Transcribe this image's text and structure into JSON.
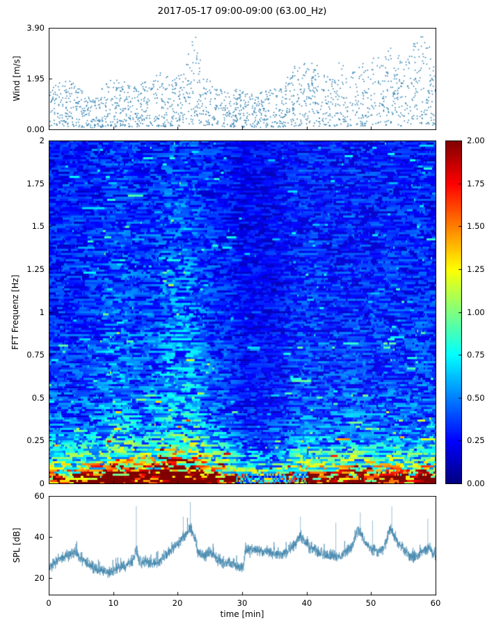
{
  "figure": {
    "title": "2017-05-17 09:00-09:00 (63.00_Hz)",
    "xlabel": "time [min]",
    "x_ticks": [
      0,
      10,
      20,
      30,
      40,
      50,
      60
    ],
    "x_range": [
      0,
      60
    ],
    "background": "#ffffff",
    "seed": 42
  },
  "chart_data": [
    {
      "id": "wind",
      "type": "scatter",
      "ylabel": "Wind [m/s]",
      "ylim": [
        0,
        3.9
      ],
      "yticks": [
        {
          "v": 0,
          "label": "0.00"
        },
        {
          "v": 1.95,
          "label": "1.95"
        },
        {
          "v": 3.9,
          "label": "3.90"
        }
      ],
      "marker_color": "#2d7fb0",
      "n_points": 1750,
      "max_envelope": [
        [
          0,
          1.6
        ],
        [
          3,
          2.1
        ],
        [
          5,
          1.5
        ],
        [
          7,
          1.1
        ],
        [
          9,
          1.9
        ],
        [
          11,
          2.0
        ],
        [
          13,
          1.6
        ],
        [
          15,
          1.9
        ],
        [
          17,
          2.2
        ],
        [
          19,
          2.0
        ],
        [
          21,
          2.3
        ],
        [
          22.5,
          3.85
        ],
        [
          24,
          2.0
        ],
        [
          26,
          1.7
        ],
        [
          28,
          1.5
        ],
        [
          30,
          1.6
        ],
        [
          32,
          1.4
        ],
        [
          34,
          1.5
        ],
        [
          36,
          1.6
        ],
        [
          38,
          2.4
        ],
        [
          40,
          2.8
        ],
        [
          42,
          2.4
        ],
        [
          44,
          2.0
        ],
        [
          45,
          2.6
        ],
        [
          47,
          2.2
        ],
        [
          49,
          2.6
        ],
        [
          51,
          2.9
        ],
        [
          53,
          3.3
        ],
        [
          55,
          2.6
        ],
        [
          57,
          3.5
        ],
        [
          58.5,
          3.85
        ],
        [
          60,
          2.2
        ]
      ]
    },
    {
      "id": "spectrogram",
      "type": "heatmap",
      "ylabel": "FFT Frequenz [Hz]",
      "ylim": [
        0,
        2
      ],
      "yticks": [
        {
          "v": 0,
          "label": "0"
        },
        {
          "v": 0.25,
          "label": "0.25"
        },
        {
          "v": 0.5,
          "label": "0.5"
        },
        {
          "v": 0.75,
          "label": "0.75"
        },
        {
          "v": 1,
          "label": "1"
        },
        {
          "v": 1.25,
          "label": "1.25"
        },
        {
          "v": 1.5,
          "label": "1.5"
        },
        {
          "v": 1.75,
          "label": "1.75"
        },
        {
          "v": 2,
          "label": "2"
        }
      ],
      "colormap": "jet",
      "vmin": 0,
      "vmax": 2,
      "colorbar_ticks": [
        {
          "v": 0,
          "label": "0.00"
        },
        {
          "v": 0.25,
          "label": "0.25"
        },
        {
          "v": 0.5,
          "label": "0.50"
        },
        {
          "v": 0.75,
          "label": "0.75"
        },
        {
          "v": 1,
          "label": "1.00"
        },
        {
          "v": 1.25,
          "label": "1.25"
        },
        {
          "v": 1.5,
          "label": "1.50"
        },
        {
          "v": 1.75,
          "label": "1.75"
        },
        {
          "v": 2,
          "label": "2.00"
        }
      ],
      "freq_profile": [
        [
          0,
          2.2
        ],
        [
          0.02,
          2.05
        ],
        [
          0.05,
          1.5
        ],
        [
          0.08,
          1.05
        ],
        [
          0.12,
          0.8
        ],
        [
          0.2,
          0.58
        ],
        [
          0.3,
          0.42
        ],
        [
          0.5,
          0.34
        ],
        [
          1.0,
          0.29
        ],
        [
          1.5,
          0.27
        ],
        [
          2,
          0.26
        ]
      ],
      "time_envelope": [
        [
          0,
          1.0
        ],
        [
          5,
          1.05
        ],
        [
          8,
          1.15
        ],
        [
          10,
          1.35
        ],
        [
          12,
          1.4
        ],
        [
          14,
          1.2
        ],
        [
          17,
          1.35
        ],
        [
          19,
          1.55
        ],
        [
          21,
          1.6
        ],
        [
          23,
          1.45
        ],
        [
          25,
          1.15
        ],
        [
          28,
          0.95
        ],
        [
          30,
          0.75
        ],
        [
          33,
          0.7
        ],
        [
          36,
          0.78
        ],
        [
          38,
          1.0
        ],
        [
          40,
          1.05
        ],
        [
          45,
          1.0
        ],
        [
          47,
          1.08
        ],
        [
          50,
          1.0
        ],
        [
          53,
          1.06
        ],
        [
          56,
          1.0
        ],
        [
          58,
          1.12
        ],
        [
          60,
          1.0
        ]
      ],
      "grid": {
        "cols": 279,
        "rows": 165
      }
    },
    {
      "id": "spl",
      "type": "line",
      "ylabel": "SPL [dB]",
      "ylim": [
        12,
        60
      ],
      "yticks": [
        {
          "v": 20,
          "label": "20"
        },
        {
          "v": 40,
          "label": "40"
        },
        {
          "v": 60,
          "label": "60"
        }
      ],
      "line_color": "#3d82aa",
      "n_samples": 2800,
      "noise_amp": 2.6,
      "mean_envelope": [
        [
          0,
          25
        ],
        [
          1,
          28
        ],
        [
          2,
          30
        ],
        [
          3,
          31
        ],
        [
          4,
          33
        ],
        [
          5,
          29
        ],
        [
          6,
          27
        ],
        [
          7,
          25
        ],
        [
          8,
          24
        ],
        [
          9,
          23
        ],
        [
          10,
          24
        ],
        [
          11,
          26
        ],
        [
          12,
          26
        ],
        [
          13,
          29
        ],
        [
          13.5,
          34
        ],
        [
          14,
          28
        ],
        [
          15,
          28
        ],
        [
          16,
          27
        ],
        [
          17,
          28
        ],
        [
          18,
          31
        ],
        [
          19,
          34
        ],
        [
          20,
          37
        ],
        [
          21,
          41
        ],
        [
          22,
          44
        ],
        [
          22.7,
          38
        ],
        [
          23,
          33
        ],
        [
          24,
          31
        ],
        [
          25,
          33
        ],
        [
          26,
          29
        ],
        [
          27,
          27
        ],
        [
          28,
          28
        ],
        [
          29,
          26
        ],
        [
          30,
          25
        ],
        [
          30.5,
          33
        ],
        [
          32,
          34
        ],
        [
          33,
          33
        ],
        [
          34,
          33
        ],
        [
          35,
          32
        ],
        [
          36,
          32
        ],
        [
          37,
          33
        ],
        [
          38,
          36
        ],
        [
          39,
          41
        ],
        [
          40,
          36
        ],
        [
          41,
          34
        ],
        [
          42,
          32
        ],
        [
          43,
          31
        ],
        [
          44,
          31
        ],
        [
          45,
          30
        ],
        [
          46,
          33
        ],
        [
          47,
          35
        ],
        [
          48,
          43
        ],
        [
          49,
          38
        ],
        [
          50,
          34
        ],
        [
          51,
          33
        ],
        [
          52,
          35
        ],
        [
          53,
          44
        ],
        [
          54,
          38
        ],
        [
          55,
          34
        ],
        [
          56,
          31
        ],
        [
          57,
          30
        ],
        [
          58,
          33
        ],
        [
          59,
          35
        ],
        [
          60,
          31
        ]
      ],
      "spikes": [
        [
          13.5,
          55
        ],
        [
          20.8,
          50
        ],
        [
          21.9,
          57
        ],
        [
          39,
          50
        ],
        [
          44.5,
          47
        ],
        [
          48.3,
          52
        ],
        [
          50.2,
          48
        ],
        [
          53.2,
          55
        ],
        [
          58.8,
          49
        ]
      ]
    }
  ]
}
